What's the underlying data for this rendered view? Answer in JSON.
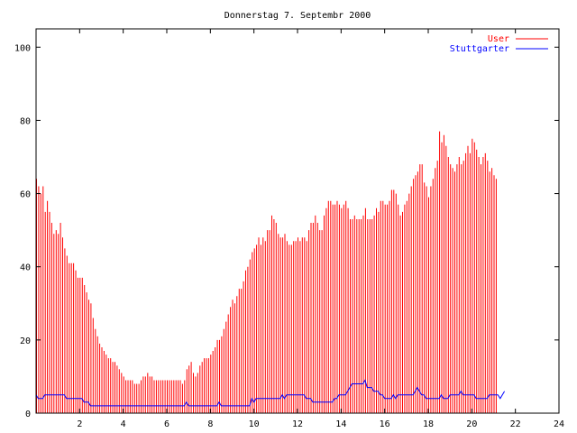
{
  "chart_data": {
    "type": "bar",
    "title": "Donnerstag 7. Septembr 2000",
    "xlabel": "",
    "ylabel": "",
    "xlim": [
      0,
      24
    ],
    "ylim": [
      0,
      105
    ],
    "grid": false,
    "legend_position": "top-right",
    "x_ticks": [
      2,
      4,
      6,
      8,
      10,
      12,
      14,
      16,
      18,
      20,
      22,
      24
    ],
    "y_ticks": [
      0,
      20,
      40,
      60,
      80,
      100
    ],
    "series": [
      {
        "name": "User",
        "style": "impulses",
        "color": "#ff0000",
        "x_start": 0,
        "x_step": 0.1,
        "values": [
          64,
          62,
          60,
          62,
          55,
          58,
          55,
          52,
          49,
          50,
          49,
          52,
          48,
          45,
          43,
          41,
          41,
          41,
          39,
          37,
          37,
          37,
          35,
          33,
          31,
          30,
          26,
          23,
          21,
          19,
          18,
          17,
          16,
          15,
          15,
          14,
          14,
          13,
          12,
          11,
          10,
          9,
          9,
          9,
          9,
          8,
          8,
          8,
          9,
          10,
          10,
          11,
          10,
          10,
          9,
          9,
          9,
          9,
          9,
          9,
          9,
          9,
          9,
          9,
          9,
          9,
          9,
          8,
          9,
          12,
          13,
          14,
          11,
          10,
          11,
          13,
          14,
          15,
          15,
          15,
          16,
          17,
          18,
          20,
          20,
          21,
          23,
          25,
          27,
          29,
          31,
          30,
          32,
          34,
          34,
          36,
          39,
          40,
          42,
          44,
          45,
          46,
          48,
          46,
          48,
          47,
          50,
          50,
          54,
          53,
          52,
          49,
          48,
          48,
          49,
          47,
          46,
          46,
          47,
          47,
          48,
          47,
          48,
          48,
          47,
          50,
          52,
          52,
          54,
          52,
          50,
          50,
          54,
          56,
          58,
          58,
          57,
          57,
          58,
          57,
          56,
          57,
          58,
          56,
          53,
          53,
          54,
          53,
          53,
          53,
          54,
          56,
          53,
          53,
          53,
          54,
          56,
          55,
          58,
          58,
          57,
          57,
          58,
          61,
          61,
          60,
          57,
          54,
          55,
          57,
          58,
          60,
          62,
          64,
          65,
          66,
          68,
          68,
          63,
          62,
          59,
          62,
          64,
          67,
          69,
          77,
          74,
          76,
          73,
          70,
          68,
          67,
          66,
          68,
          70,
          68,
          69,
          71,
          73,
          71,
          75,
          74,
          72,
          70,
          68,
          70,
          71,
          69,
          66,
          67,
          65,
          64
        ]
      },
      {
        "name": "Stuttgarter",
        "style": "lines",
        "color": "#0000ff",
        "x_start": 0,
        "x_step": 0.1,
        "values": [
          5,
          4,
          4,
          4,
          5,
          5,
          5,
          5,
          5,
          5,
          5,
          5,
          5,
          5,
          4,
          4,
          4,
          4,
          4,
          4,
          4,
          4,
          3,
          3,
          3,
          2,
          2,
          2,
          2,
          2,
          2,
          2,
          2,
          2,
          2,
          2,
          2,
          2,
          2,
          2,
          2,
          2,
          2,
          2,
          2,
          2,
          2,
          2,
          2,
          2,
          2,
          2,
          2,
          2,
          2,
          2,
          2,
          2,
          2,
          2,
          2,
          2,
          2,
          2,
          2,
          2,
          2,
          2,
          2,
          3,
          2,
          2,
          2,
          2,
          2,
          2,
          2,
          2,
          2,
          2,
          2,
          2,
          2,
          2,
          3,
          2,
          2,
          2,
          2,
          2,
          2,
          2,
          2,
          2,
          2,
          2,
          2,
          2,
          2,
          4,
          3,
          4,
          4,
          4,
          4,
          4,
          4,
          4,
          4,
          4,
          4,
          4,
          4,
          5,
          4,
          5,
          5,
          5,
          5,
          5,
          5,
          5,
          5,
          5,
          4,
          4,
          4,
          3,
          3,
          3,
          3,
          3,
          3,
          3,
          3,
          3,
          3,
          4,
          4,
          5,
          5,
          5,
          5,
          6,
          7,
          8,
          8,
          8,
          8,
          8,
          8,
          9,
          7,
          7,
          7,
          6,
          6,
          6,
          5,
          5,
          4,
          4,
          4,
          4,
          5,
          4,
          5,
          5,
          5,
          5,
          5,
          5,
          5,
          5,
          6,
          7,
          6,
          5,
          5,
          4,
          4,
          4,
          4,
          4,
          4,
          4,
          5,
          4,
          4,
          4,
          5,
          5,
          5,
          5,
          5,
          6,
          5,
          5,
          5,
          5,
          5,
          5,
          4,
          4,
          4,
          4,
          4,
          4,
          5,
          5,
          5,
          5,
          5,
          4,
          5,
          6
        ]
      }
    ]
  }
}
